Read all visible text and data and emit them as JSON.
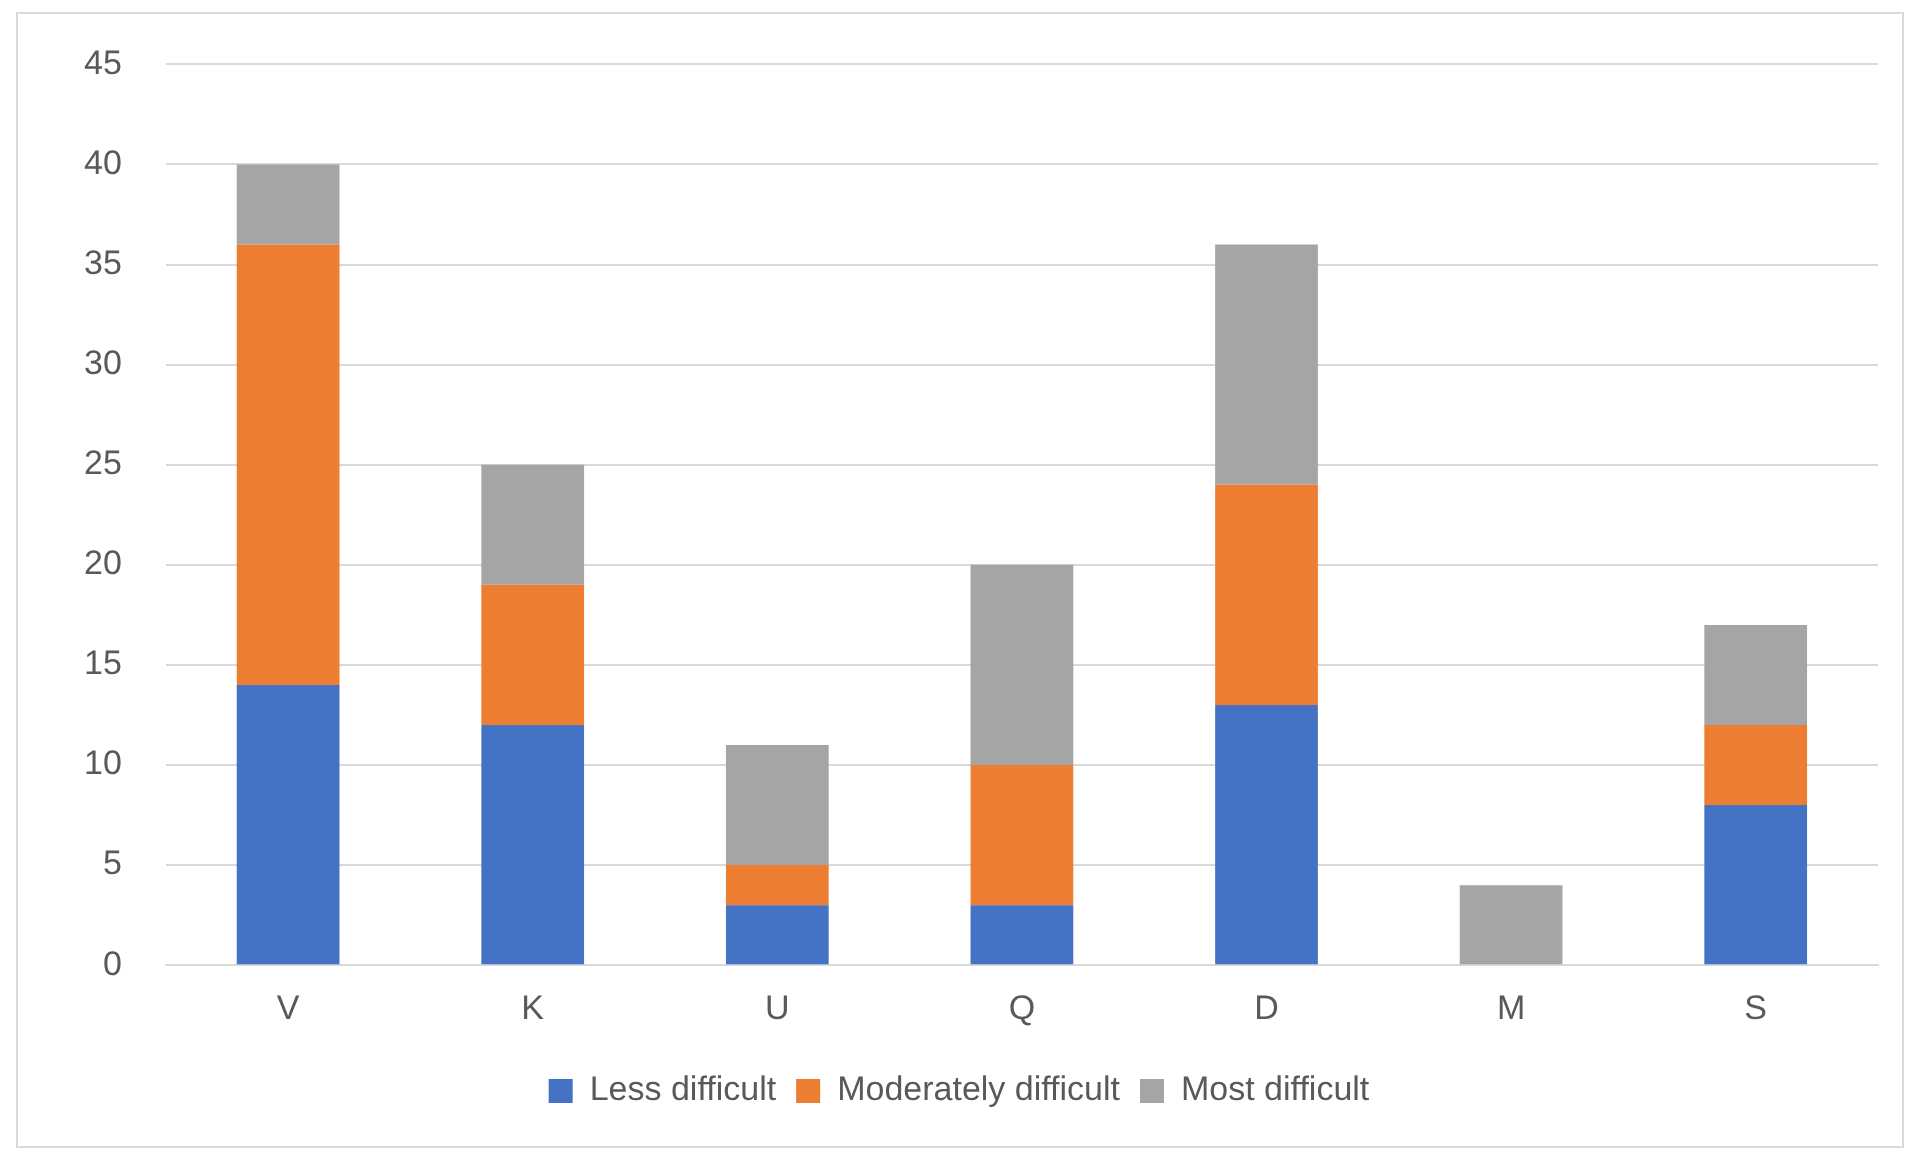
{
  "chart_data": {
    "type": "bar",
    "stacked": true,
    "categories": [
      "V",
      "K",
      "U",
      "Q",
      "D",
      "M",
      "S"
    ],
    "series": [
      {
        "name": "Less difficult",
        "color": "#4472c4",
        "values": [
          14,
          12,
          3,
          3,
          13,
          0,
          8
        ]
      },
      {
        "name": "Moderately difficult",
        "color": "#ed7d31",
        "values": [
          22,
          7,
          2,
          7,
          11,
          0,
          4
        ]
      },
      {
        "name": "Most difficult",
        "color": "#a5a5a5",
        "values": [
          4,
          6,
          6,
          10,
          12,
          4,
          5
        ]
      }
    ],
    "ylim": [
      0,
      45
    ],
    "yticks": [
      0,
      5,
      10,
      15,
      20,
      25,
      30,
      35,
      40,
      45
    ],
    "grid": "y",
    "legend": "bottom"
  }
}
